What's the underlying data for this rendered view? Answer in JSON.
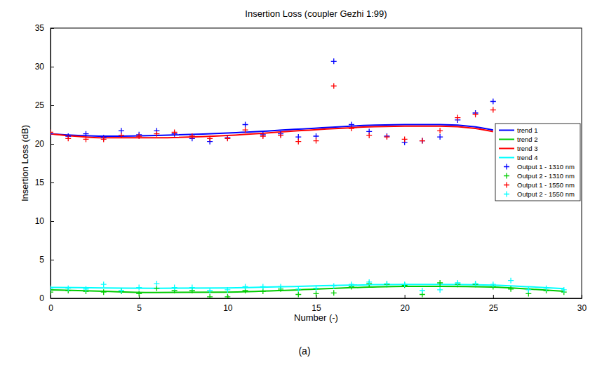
{
  "chart_data": {
    "type": "scatter",
    "title": "Insertion Loss (coupler Gezhi 1:99)",
    "x_label": "Number (-)",
    "y_label": "Insertion Loss (dB)",
    "caption": "(a)",
    "xlim": [
      0,
      30
    ],
    "xticks": [
      0,
      5,
      10,
      15,
      20,
      25,
      30
    ],
    "ylim": [
      0,
      35
    ],
    "yticks": [
      0,
      5,
      10,
      15,
      20,
      25,
      30,
      35
    ],
    "grid": false,
    "legend": "right",
    "series": [
      {
        "name": "trend 1",
        "type": "line",
        "line_style": "solid",
        "color": "#0000ff",
        "x": [
          0,
          3,
          6,
          10,
          14,
          18,
          20,
          22,
          24,
          25
        ],
        "values": [
          21.3,
          21.0,
          21.1,
          21.4,
          21.9,
          22.4,
          22.5,
          22.5,
          22.2,
          21.8
        ]
      },
      {
        "name": "trend 2",
        "type": "line",
        "line_style": "solid",
        "color": "#00cc00",
        "x": [
          0,
          3,
          6,
          10,
          14,
          18,
          20,
          22,
          25,
          27,
          29
        ],
        "values": [
          1.1,
          0.9,
          0.75,
          0.8,
          1.1,
          1.45,
          1.55,
          1.55,
          1.45,
          1.2,
          0.9
        ]
      },
      {
        "name": "trend 3",
        "type": "line",
        "line_style": "solid",
        "color": "#ff0000",
        "x": [
          0,
          3,
          6,
          10,
          14,
          18,
          20,
          22,
          24,
          25
        ],
        "values": [
          21.3,
          20.8,
          20.8,
          21.1,
          21.7,
          22.2,
          22.3,
          22.3,
          22.0,
          21.6
        ]
      },
      {
        "name": "trend 4",
        "type": "line",
        "line_style": "solid",
        "color": "#00ffff",
        "x": [
          0,
          3,
          6,
          10,
          14,
          18,
          20,
          22,
          25,
          27,
          29
        ],
        "values": [
          1.4,
          1.35,
          1.3,
          1.35,
          1.55,
          1.75,
          1.8,
          1.8,
          1.7,
          1.5,
          1.25
        ]
      },
      {
        "name": "Output 1 - 1310 nm",
        "type": "scatter",
        "marker": "plus",
        "color": "#0000ff",
        "x": [
          0,
          1,
          2,
          3,
          4,
          5,
          6,
          7,
          8,
          9,
          10,
          11,
          12,
          13,
          14,
          15,
          16,
          17,
          18,
          19,
          20,
          21,
          22,
          23,
          24,
          25
        ],
        "values": [
          21.3,
          21.0,
          21.3,
          20.8,
          21.7,
          21.2,
          21.7,
          21.3,
          20.7,
          20.3,
          20.8,
          22.5,
          21.2,
          21.3,
          20.9,
          21.0,
          30.7,
          22.5,
          21.6,
          21.0,
          20.2,
          20.4,
          20.9,
          23.1,
          24.0,
          25.5
        ]
      },
      {
        "name": "Output 2 - 1310 nm",
        "type": "scatter",
        "marker": "plus",
        "color": "#00cc00",
        "x": [
          0,
          1,
          2,
          3,
          4,
          5,
          6,
          7,
          8,
          9,
          10,
          11,
          12,
          13,
          14,
          15,
          16,
          17,
          18,
          19,
          20,
          21,
          22,
          23,
          24,
          25,
          26,
          27,
          28,
          29
        ],
        "values": [
          0.8,
          1.0,
          0.9,
          0.8,
          0.9,
          0.6,
          1.3,
          1.0,
          1.0,
          0.2,
          0.2,
          1.0,
          0.9,
          1.2,
          0.5,
          0.6,
          0.7,
          1.5,
          1.9,
          1.8,
          1.7,
          0.5,
          2.0,
          1.8,
          1.8,
          1.5,
          1.2,
          0.6,
          1.0,
          0.8
        ]
      },
      {
        "name": "Output 1 - 1550 nm",
        "type": "scatter",
        "marker": "plus",
        "color": "#ff0000",
        "x": [
          0,
          1,
          2,
          3,
          4,
          5,
          6,
          7,
          8,
          9,
          10,
          11,
          12,
          13,
          14,
          15,
          16,
          17,
          18,
          19,
          20,
          21,
          22,
          23,
          24,
          25
        ],
        "values": [
          21.5,
          20.7,
          20.6,
          20.6,
          21.1,
          21.0,
          21.3,
          21.5,
          21.0,
          20.7,
          20.7,
          21.8,
          21.0,
          21.1,
          20.3,
          20.4,
          27.5,
          22.0,
          21.1,
          20.9,
          20.6,
          20.4,
          21.7,
          23.4,
          23.8,
          24.4
        ]
      },
      {
        "name": "Output 2 - 1550 nm",
        "type": "scatter",
        "marker": "plus",
        "color": "#00ffff",
        "x": [
          0,
          1,
          2,
          3,
          4,
          5,
          6,
          7,
          8,
          9,
          10,
          11,
          12,
          13,
          14,
          15,
          16,
          17,
          18,
          19,
          20,
          21,
          22,
          23,
          24,
          25,
          26,
          27,
          28,
          29
        ],
        "values": [
          1.3,
          1.3,
          1.2,
          1.8,
          1.0,
          1.4,
          1.9,
          1.4,
          1.4,
          1.0,
          1.1,
          1.5,
          1.5,
          1.5,
          1.2,
          1.3,
          1.6,
          1.8,
          2.1,
          1.9,
          1.8,
          1.0,
          1.1,
          2.0,
          1.9,
          1.8,
          2.3,
          1.1,
          1.3,
          1.1
        ]
      }
    ]
  }
}
